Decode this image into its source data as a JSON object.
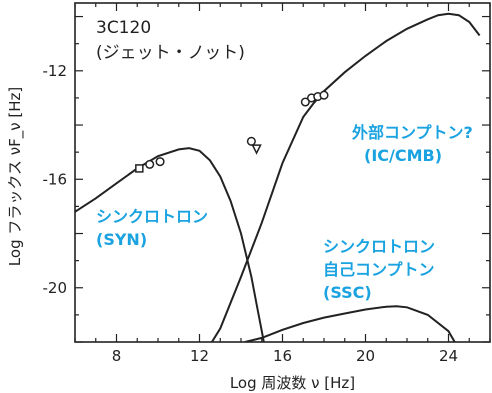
{
  "chart_data": {
    "type": "line",
    "title": [
      "3C120",
      "(ジェット・ノット)"
    ],
    "xlabel": "Log 周波数 ν [Hz]",
    "ylabel": "Log フラックス νF_ν [Hz]",
    "xlim": [
      6,
      26
    ],
    "ylim": [
      -22,
      -9.5
    ],
    "x_ticks": [
      8,
      12,
      16,
      20,
      24
    ],
    "y_ticks": [
      -12,
      -16,
      -20
    ],
    "x_tick_labels": [
      "8",
      "12",
      "16",
      "20",
      "24"
    ],
    "y_tick_labels": [
      "-12",
      "-16",
      "-20"
    ],
    "grid": false,
    "legend": "none",
    "series": [
      {
        "name": "シンクロトロン (SYN)",
        "x": [
          6.0,
          7.0,
          8.0,
          9.0,
          10.0,
          11.0,
          11.5,
          12.0,
          12.5,
          13.0,
          13.5,
          14.0,
          14.5,
          14.8,
          15.0,
          15.1
        ],
        "y": [
          -17.2,
          -16.7,
          -16.15,
          -15.6,
          -15.15,
          -14.9,
          -14.85,
          -14.95,
          -15.3,
          -15.9,
          -16.8,
          -18.0,
          -19.6,
          -20.8,
          -21.6,
          -22.0
        ]
      },
      {
        "name": "外部コンプトン? (IC/CMB)",
        "x": [
          12.6,
          13.0,
          14.0,
          15.0,
          16.0,
          17.0,
          17.5,
          18.0,
          19.0,
          20.0,
          21.0,
          22.0,
          23.0,
          23.5,
          24.0,
          24.5,
          25.0,
          25.5
        ],
        "y": [
          -22.0,
          -21.5,
          -19.6,
          -17.6,
          -15.4,
          -13.7,
          -13.2,
          -12.75,
          -12.05,
          -11.45,
          -10.9,
          -10.45,
          -10.1,
          -9.95,
          -9.9,
          -9.95,
          -10.2,
          -10.7
        ]
      },
      {
        "name": "シンクロトロン 自己コンプトン (SSC)",
        "x": [
          14.2,
          15.0,
          16.0,
          17.0,
          18.0,
          19.0,
          20.0,
          21.0,
          21.5,
          22.0,
          23.0,
          24.0,
          24.3
        ],
        "y": [
          -22.0,
          -21.85,
          -21.55,
          -21.3,
          -21.1,
          -20.95,
          -20.8,
          -20.7,
          -20.68,
          -20.72,
          -21.0,
          -21.6,
          -22.0
        ]
      }
    ],
    "points": [
      {
        "x": 9.1,
        "y": -15.6,
        "marker": "square"
      },
      {
        "x": 9.6,
        "y": -15.45,
        "marker": "circle"
      },
      {
        "x": 10.1,
        "y": -15.35,
        "marker": "circle"
      },
      {
        "x": 14.5,
        "y": -14.6,
        "marker": "circle"
      },
      {
        "x": 14.75,
        "y": -14.85,
        "marker": "triangle-down"
      },
      {
        "x": 17.1,
        "y": -13.15,
        "marker": "circle"
      },
      {
        "x": 17.4,
        "y": -13.0,
        "marker": "circle"
      },
      {
        "x": 17.7,
        "y": -12.95,
        "marker": "circle"
      },
      {
        "x": 18.0,
        "y": -12.9,
        "marker": "circle"
      }
    ],
    "annotations": [
      {
        "lines": [
          "外部コンプトン?",
          "(IC/CMB)"
        ],
        "color": "#1aa3e0"
      },
      {
        "lines": [
          "シンクロトロン",
          "(SYN)"
        ],
        "color": "#1aa3e0"
      },
      {
        "lines": [
          "シンクロトロン",
          "自己コンプトン",
          "(SSC)"
        ],
        "color": "#1aa3e0"
      }
    ]
  }
}
